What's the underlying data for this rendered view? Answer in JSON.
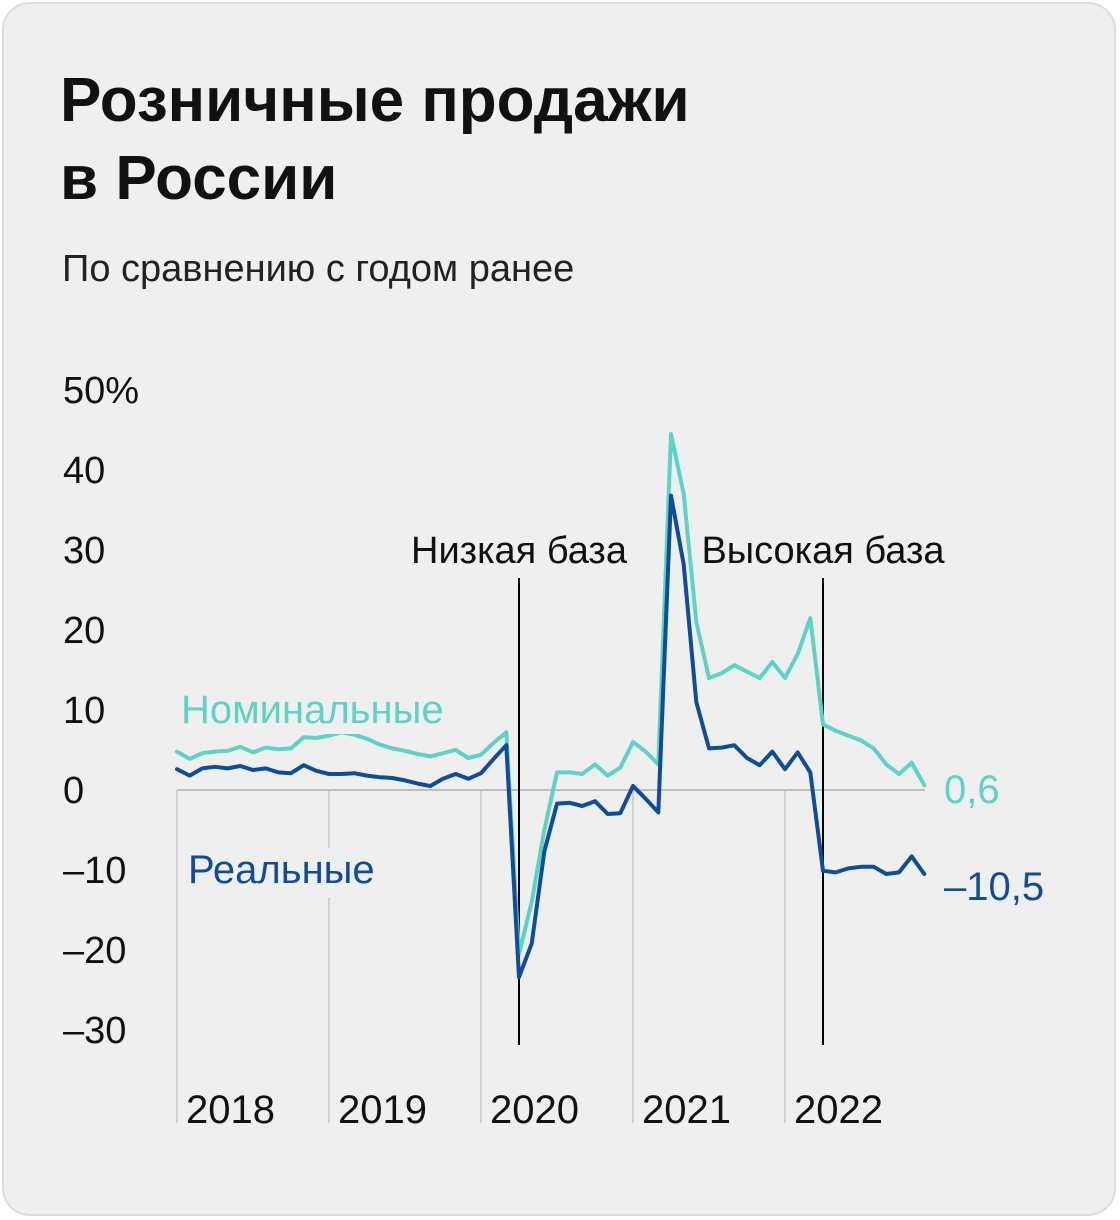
{
  "title_line1": "Розничные продажи",
  "title_line2": "в России",
  "subtitle": "По сравнению с годом ранее",
  "colors": {
    "nominal": "#5dd3c5",
    "real": "#0f4c9c",
    "grid": "#d0d0d0",
    "zero": "#bdbdbd",
    "annotation": "#000000"
  },
  "chart_data": {
    "type": "line",
    "ylim": [
      -30,
      50
    ],
    "y_ticks": [
      {
        "value": 50,
        "label": "50%"
      },
      {
        "value": 40,
        "label": "40"
      },
      {
        "value": 30,
        "label": "30"
      },
      {
        "value": 20,
        "label": "20"
      },
      {
        "value": 10,
        "label": "10"
      },
      {
        "value": 0,
        "label": "0"
      },
      {
        "value": -10,
        "label": "–10"
      },
      {
        "value": -20,
        "label": "–20"
      },
      {
        "value": -30,
        "label": "–30"
      }
    ],
    "x_ticks": [
      "2018",
      "2019",
      "2020",
      "2021",
      "2022"
    ],
    "start": "2018-01",
    "series": [
      {
        "name": "Номинальные",
        "values": [
          4.8,
          3.9,
          4.6,
          4.8,
          4.9,
          5.4,
          4.7,
          5.3,
          5.1,
          5.2,
          6.6,
          6.5,
          6.8,
          7.2,
          6.9,
          6.4,
          5.7,
          5.2,
          4.9,
          4.5,
          4.2,
          4.6,
          5.0,
          4.0,
          4.4,
          5.9,
          7.2,
          -20.5,
          -14.0,
          -5.0,
          2.2,
          2.2,
          2.0,
          3.2,
          1.8,
          2.8,
          6.0,
          4.8,
          3.2,
          44.5,
          37.0,
          21.0,
          14.0,
          14.6,
          15.6,
          14.8,
          14.0,
          16.0,
          14.0,
          17.0,
          21.5,
          8.2,
          7.4,
          6.8,
          6.2,
          5.2,
          3.2,
          2.0,
          3.4,
          0.6
        ],
        "end_label": "0,6"
      },
      {
        "name": "Реальные",
        "values": [
          2.6,
          1.8,
          2.7,
          2.9,
          2.7,
          3.0,
          2.5,
          2.7,
          2.2,
          2.1,
          3.1,
          2.4,
          2.0,
          2.0,
          2.1,
          1.8,
          1.6,
          1.5,
          1.2,
          0.8,
          0.5,
          1.4,
          2.0,
          1.4,
          2.1,
          3.9,
          5.6,
          -23.4,
          -19.2,
          -7.7,
          -1.7,
          -1.6,
          -2.0,
          -1.4,
          -3.0,
          -2.9,
          0.5,
          -1.1,
          -2.8,
          36.8,
          28.2,
          11.0,
          5.2,
          5.3,
          5.6,
          4.0,
          3.1,
          4.8,
          2.6,
          4.7,
          2.2,
          -10.1,
          -10.3,
          -9.8,
          -9.6,
          -9.6,
          -10.5,
          -10.3,
          -8.3,
          -10.5
        ],
        "end_label": "–10,5"
      }
    ],
    "annotations": [
      {
        "label": "Низкая база",
        "date": "2020-04"
      },
      {
        "label": "Высокая база",
        "date": "2022-04"
      }
    ]
  }
}
